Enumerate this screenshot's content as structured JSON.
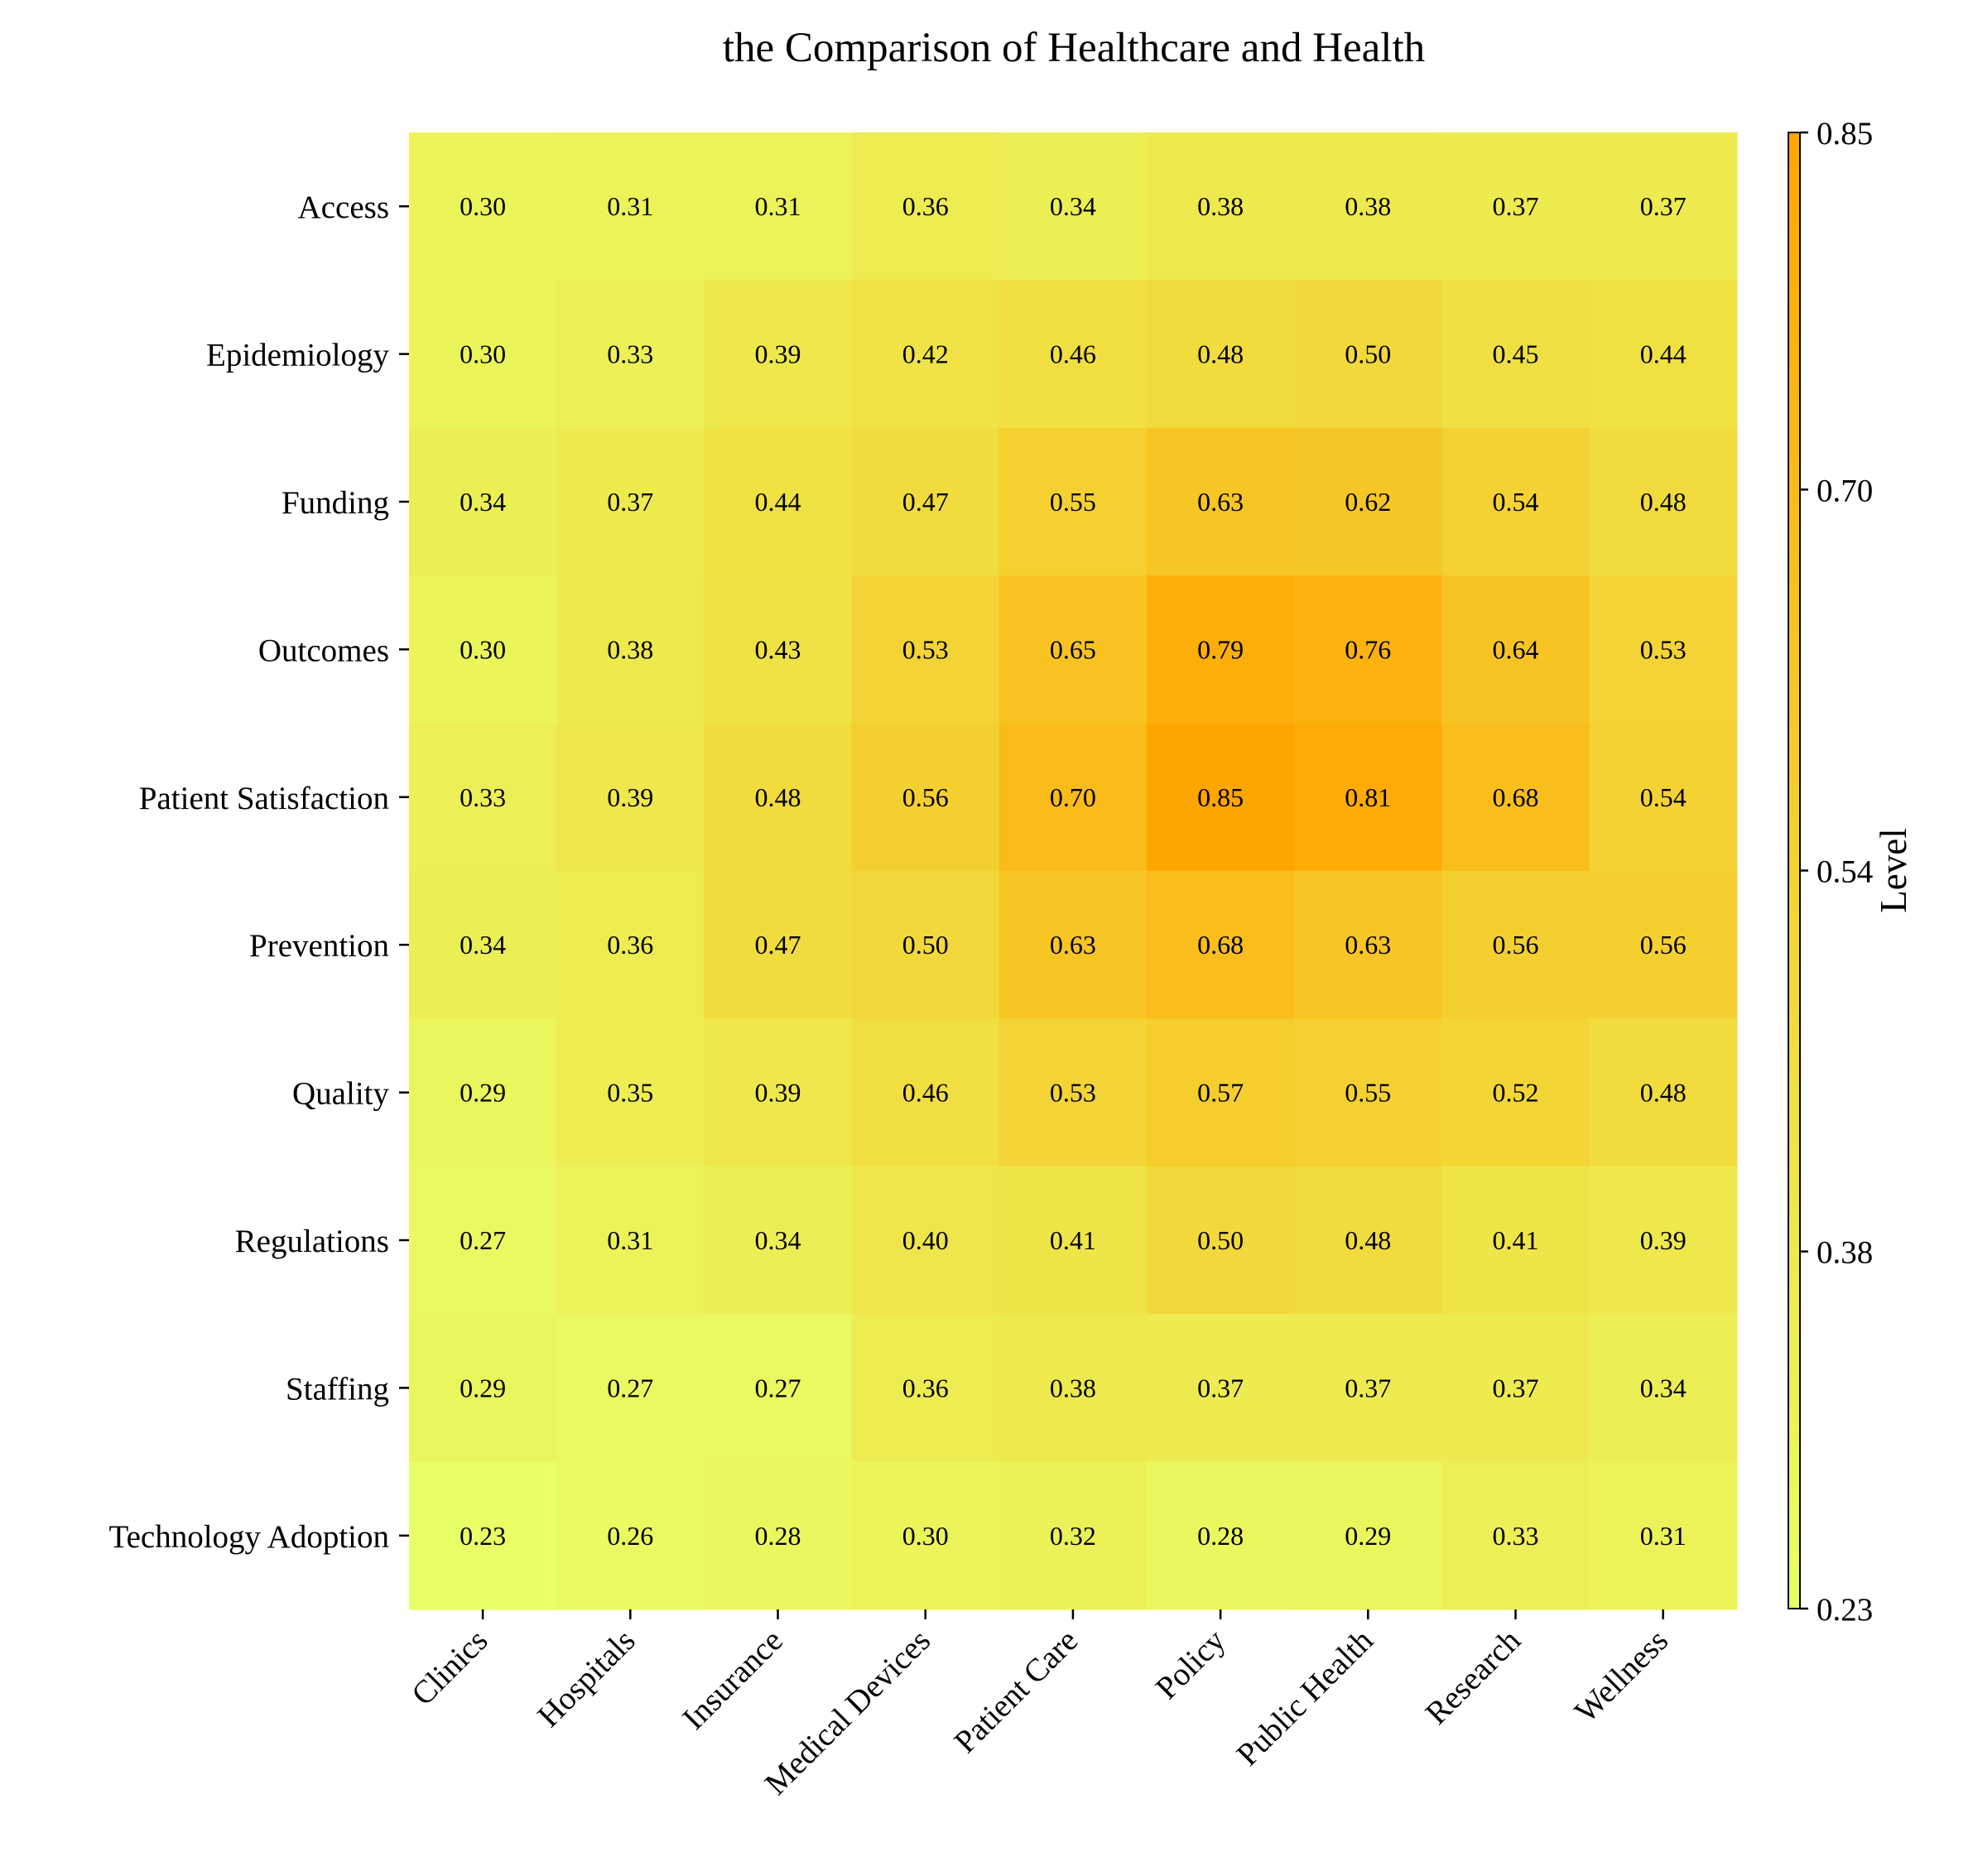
{
  "chart_data": {
    "type": "heatmap",
    "title": "the Comparison of Healthcare and Health",
    "x_categories": [
      "Clinics",
      "Hospitals",
      "Insurance",
      "Medical Devices",
      "Patient Care",
      "Policy",
      "Public Health",
      "Research",
      "Wellness"
    ],
    "y_categories": [
      "Access",
      "Epidemiology",
      "Funding",
      "Outcomes",
      "Patient Satisfaction",
      "Prevention",
      "Quality",
      "Regulations",
      "Staffing",
      "Technology Adoption"
    ],
    "values": [
      [
        0.3,
        0.31,
        0.31,
        0.36,
        0.34,
        0.38,
        0.38,
        0.37,
        0.37
      ],
      [
        0.3,
        0.33,
        0.39,
        0.42,
        0.46,
        0.48,
        0.5,
        0.45,
        0.44
      ],
      [
        0.34,
        0.37,
        0.44,
        0.47,
        0.55,
        0.63,
        0.62,
        0.54,
        0.48
      ],
      [
        0.3,
        0.38,
        0.43,
        0.53,
        0.65,
        0.79,
        0.76,
        0.64,
        0.53
      ],
      [
        0.33,
        0.39,
        0.48,
        0.56,
        0.7,
        0.85,
        0.81,
        0.68,
        0.54
      ],
      [
        0.34,
        0.36,
        0.47,
        0.5,
        0.63,
        0.68,
        0.63,
        0.56,
        0.56
      ],
      [
        0.29,
        0.35,
        0.39,
        0.46,
        0.53,
        0.57,
        0.55,
        0.52,
        0.48
      ],
      [
        0.27,
        0.31,
        0.34,
        0.4,
        0.41,
        0.5,
        0.48,
        0.41,
        0.39
      ],
      [
        0.29,
        0.27,
        0.27,
        0.36,
        0.38,
        0.37,
        0.37,
        0.37,
        0.34
      ],
      [
        0.23,
        0.26,
        0.28,
        0.3,
        0.32,
        0.28,
        0.29,
        0.33,
        0.31
      ]
    ],
    "colorbar": {
      "label": "Level",
      "range": [
        0.23,
        0.85
      ],
      "ticks": [
        0.23,
        0.38,
        0.54,
        0.7,
        0.85
      ],
      "tick_labels": [
        "0.23",
        "0.38",
        "0.54",
        "0.70",
        "0.85"
      ],
      "colors": [
        "#e8ff66",
        "#ffa500"
      ]
    },
    "value_format_decimals": 2
  }
}
